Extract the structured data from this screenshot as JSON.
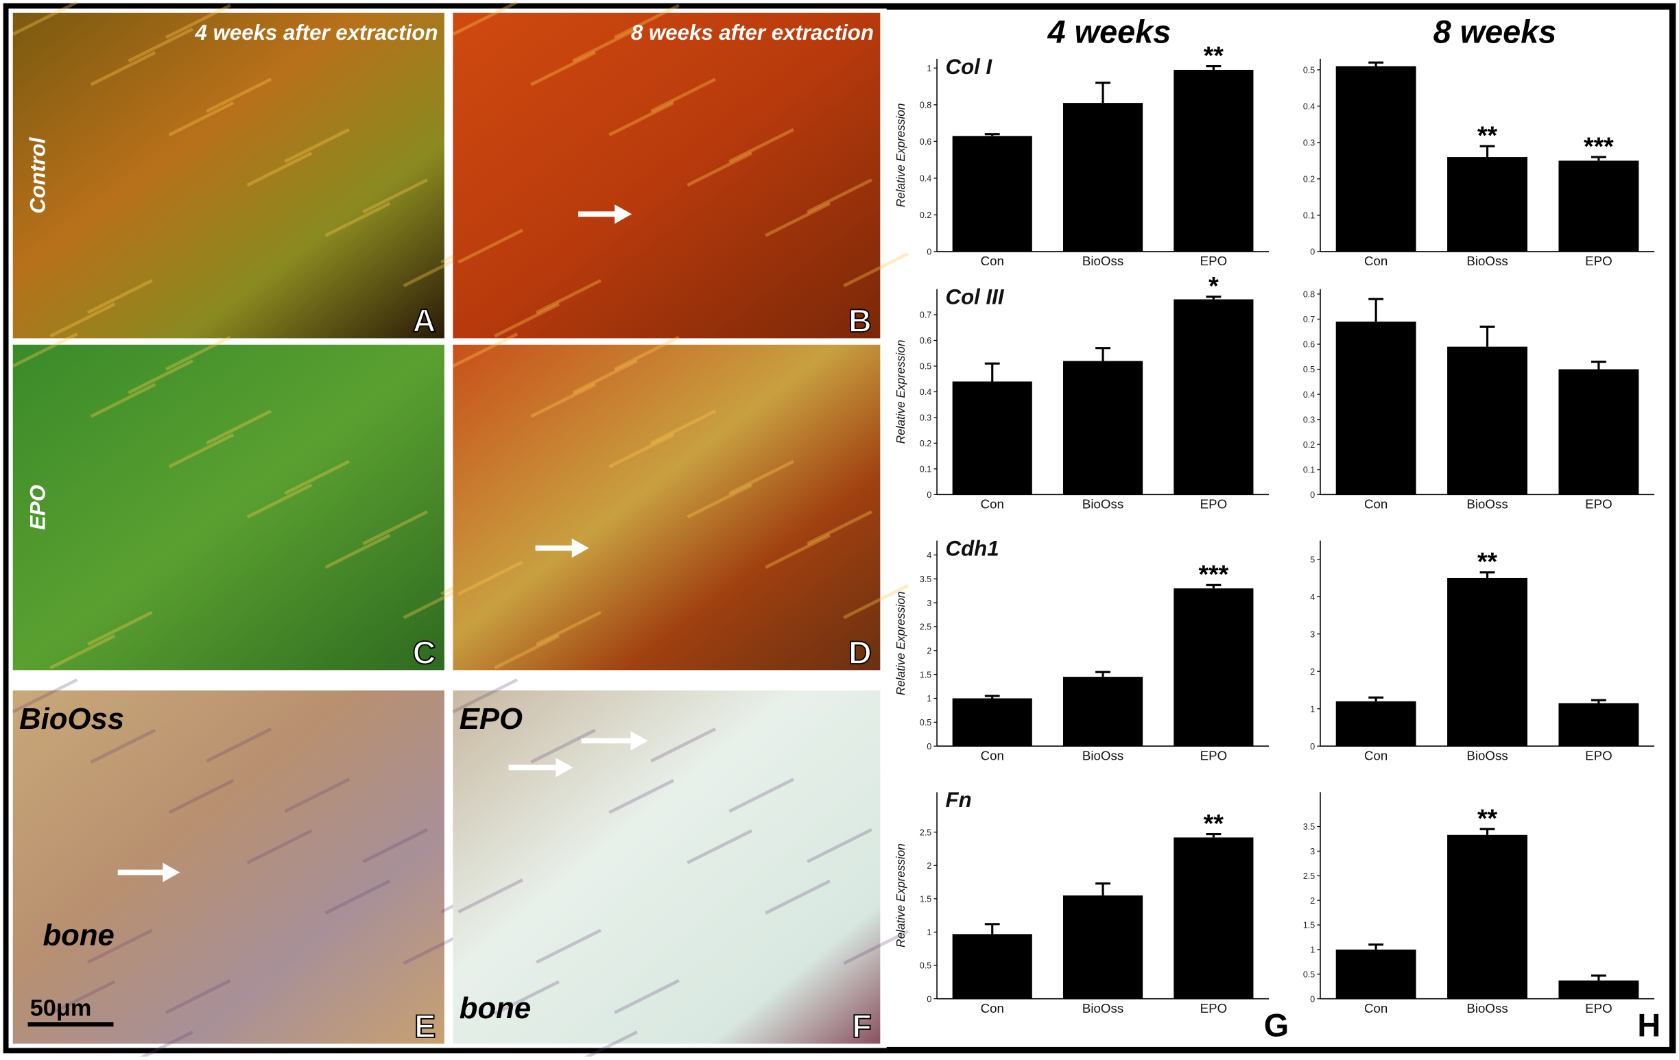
{
  "column_headers": [
    "4 weeks",
    "8 weeks"
  ],
  "micrographs": [
    {
      "letter": "A",
      "caption": "4 weeks after extraction",
      "side_label": "Control"
    },
    {
      "letter": "B",
      "caption": "8 weeks after extraction"
    },
    {
      "letter": "C",
      "side_label": "EPO"
    },
    {
      "letter": "D"
    },
    {
      "letter": "E",
      "corner_label": "BioOss",
      "tissue_label": "bone",
      "scale_bar": "50μm"
    },
    {
      "letter": "F",
      "corner_label": "EPO",
      "tissue_label": "bone"
    }
  ],
  "chart_letters": [
    "G",
    "H"
  ],
  "chart_data": [
    {
      "type": "bar",
      "title": "Col I",
      "y_label": "Relative Expression",
      "categories": [
        "Con",
        "BioOss",
        "EPO"
      ],
      "values": [
        0.63,
        0.81,
        0.99
      ],
      "errors": [
        0.01,
        0.11,
        0.02
      ],
      "annotations": [
        null,
        null,
        "**"
      ],
      "color": "#000000",
      "ylim": [
        0,
        1.05
      ],
      "yticks": [
        0,
        0.2,
        0.4,
        0.6,
        0.8,
        1
      ]
    },
    {
      "type": "bar",
      "categories": [
        "Con",
        "BioOss",
        "EPO"
      ],
      "values": [
        0.51,
        0.26,
        0.25
      ],
      "errors": [
        0.01,
        0.03,
        0.01
      ],
      "annotations": [
        null,
        "**",
        "***"
      ],
      "color": "#000000",
      "ylim": [
        0,
        0.53
      ],
      "yticks": [
        0,
        0.1,
        0.2,
        0.3,
        0.4,
        0.5
      ]
    },
    {
      "type": "bar",
      "title": "Col III",
      "y_label": "Relative Expression",
      "categories": [
        "Con",
        "BioOss",
        "EPO"
      ],
      "values": [
        0.44,
        0.52,
        0.76
      ],
      "errors": [
        0.07,
        0.05,
        0.01
      ],
      "annotations": [
        null,
        null,
        "*"
      ],
      "color": "#000000",
      "ylim": [
        0,
        0.8
      ],
      "yticks": [
        0,
        0.1,
        0.2,
        0.3,
        0.4,
        0.5,
        0.6,
        0.7
      ]
    },
    {
      "type": "bar",
      "categories": [
        "Con",
        "BioOss",
        "EPO"
      ],
      "values": [
        0.69,
        0.59,
        0.5
      ],
      "errors": [
        0.09,
        0.08,
        0.03
      ],
      "annotations": [
        null,
        null,
        null
      ],
      "color": "#000000",
      "ylim": [
        0,
        0.82
      ],
      "yticks": [
        0,
        0.1,
        0.2,
        0.3,
        0.4,
        0.5,
        0.6,
        0.7,
        0.8
      ]
    },
    {
      "type": "bar",
      "title": "Cdh1",
      "y_label": "Relative Expression",
      "categories": [
        "Con",
        "BioOss",
        "EPO"
      ],
      "values": [
        1.0,
        1.45,
        3.3
      ],
      "errors": [
        0.05,
        0.1,
        0.07
      ],
      "annotations": [
        null,
        null,
        "***"
      ],
      "color": "#000000",
      "ylim": [
        0,
        4.3
      ],
      "yticks": [
        0,
        0.5,
        1,
        1.5,
        2,
        2.5,
        3,
        3.5,
        4
      ]
    },
    {
      "type": "bar",
      "categories": [
        "Con",
        "BioOss",
        "EPO"
      ],
      "values": [
        1.2,
        4.5,
        1.15
      ],
      "errors": [
        0.1,
        0.15,
        0.08
      ],
      "annotations": [
        null,
        "**",
        null
      ],
      "color": "#000000",
      "ylim": [
        0,
        5.5
      ],
      "yticks": [
        0,
        1,
        2,
        3,
        4,
        5
      ]
    },
    {
      "type": "bar",
      "title": "Fn",
      "y_label": "Relative Expression",
      "categories": [
        "Con",
        "BioOss",
        "EPO"
      ],
      "values": [
        0.97,
        1.55,
        2.42
      ],
      "errors": [
        0.15,
        0.18,
        0.05
      ],
      "annotations": [
        null,
        null,
        "**"
      ],
      "color": "#000000",
      "ylim": [
        0,
        3.1
      ],
      "yticks": [
        0,
        0.5,
        1,
        1.5,
        2,
        2.5
      ]
    },
    {
      "type": "bar",
      "categories": [
        "Con",
        "BioOss",
        "EPO"
      ],
      "values": [
        1.0,
        3.33,
        0.37
      ],
      "errors": [
        0.1,
        0.12,
        0.1
      ],
      "annotations": [
        null,
        "**",
        null
      ],
      "color": "#000000",
      "ylim": [
        0,
        4.2
      ],
      "yticks": [
        0,
        0.5,
        1,
        1.5,
        2,
        2.5,
        3,
        3.5
      ]
    }
  ]
}
